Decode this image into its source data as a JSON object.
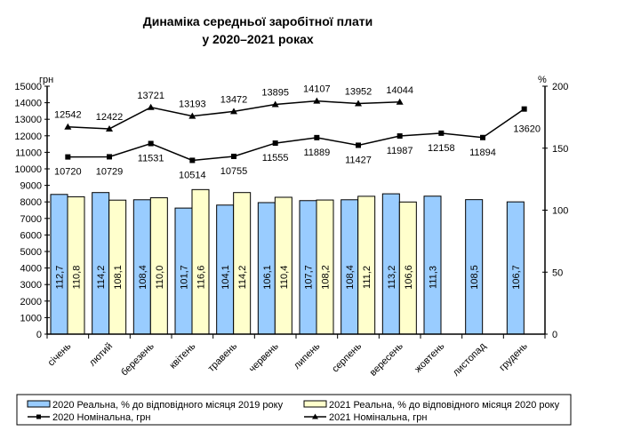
{
  "chart_data": {
    "type": "bar",
    "title": [
      "Динаміка середньої заробітної плати",
      "у 2020–2021 роках"
    ],
    "left_axis": {
      "label": "грн",
      "ylim": [
        0,
        15000
      ],
      "step": 1000
    },
    "right_axis": {
      "label": "%",
      "ylim": [
        0,
        200
      ],
      "step": 50
    },
    "categories": [
      "січень",
      "лютий",
      "березень",
      "квітень",
      "травень",
      "червень",
      "липень",
      "серпень",
      "вересень",
      "жовтень",
      "листопад",
      "грудень"
    ],
    "series": [
      {
        "name": "2020 Реальна, % до відповідного місяця 2019 року",
        "type": "bar",
        "axis": "right",
        "color": "#99ccff",
        "values": [
          112.7,
          114.2,
          108.4,
          101.7,
          104.1,
          106.1,
          107.7,
          108.4,
          113.2,
          111.3,
          108.5,
          106.7
        ],
        "labels": [
          "112,7",
          "114,2",
          "108,4",
          "101,7",
          "104,1",
          "106,1",
          "107,7",
          "108,4",
          "113,2",
          "111,3",
          "108,5",
          "106,7"
        ]
      },
      {
        "name": "2021 Реальна, % до відповідного місяця 2020 року",
        "type": "bar",
        "axis": "right",
        "color": "#ffffcc",
        "values": [
          110.8,
          108.1,
          110.0,
          116.6,
          114.2,
          110.4,
          108.2,
          111.2,
          106.6,
          null,
          null,
          null
        ],
        "labels": [
          "110,8",
          "108,1",
          "110,0",
          "116,6",
          "114,2",
          "110,4",
          "108,2",
          "111,2",
          "106,6",
          null,
          null,
          null
        ]
      },
      {
        "name": "2020 Номінальна, грн",
        "type": "line",
        "axis": "left",
        "marker": "square",
        "values": [
          10720,
          10729,
          11531,
          10514,
          10755,
          11555,
          11889,
          11427,
          11987,
          12158,
          11894,
          13620
        ]
      },
      {
        "name": "2021 Номінальна, грн",
        "type": "line",
        "axis": "left",
        "marker": "triangle",
        "values": [
          12542,
          12422,
          13721,
          13193,
          13472,
          13895,
          14107,
          13952,
          14044,
          null,
          null,
          null
        ]
      }
    ],
    "legend_position": "bottom",
    "grid": false
  }
}
